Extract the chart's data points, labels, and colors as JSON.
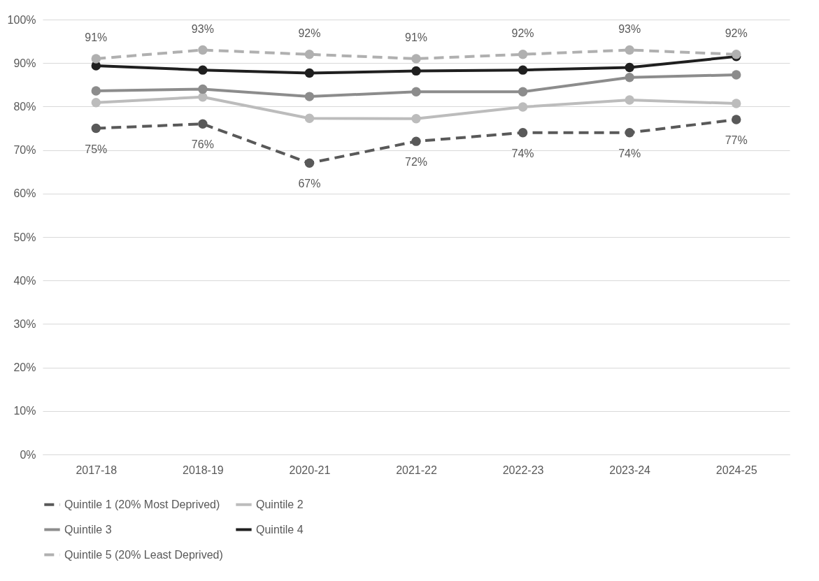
{
  "chart_data": {
    "type": "line",
    "categories": [
      "2017-18",
      "2018-19",
      "2020-21",
      "2021-22",
      "2022-23",
      "2023-24",
      "2024-25"
    ],
    "ylim": [
      0,
      100
    ],
    "yticks": [
      {
        "value": 0,
        "label": "0%"
      },
      {
        "value": 10,
        "label": "10%"
      },
      {
        "value": 20,
        "label": "20%"
      },
      {
        "value": 30,
        "label": "30%"
      },
      {
        "value": 40,
        "label": "40%"
      },
      {
        "value": 50,
        "label": "50%"
      },
      {
        "value": 60,
        "label": "60%"
      },
      {
        "value": 70,
        "label": "70%"
      },
      {
        "value": 80,
        "label": "80%"
      },
      {
        "value": 90,
        "label": "90%"
      },
      {
        "value": 100,
        "label": "100%"
      }
    ],
    "grid": "y",
    "legend": "bottom",
    "marker": "circle",
    "series": [
      {
        "name": "Quintile 1 (20% Most Deprived)",
        "color": "#595959",
        "line_style": "dashed",
        "values": [
          75,
          76,
          67,
          72,
          74,
          74,
          77
        ],
        "value_labels": [
          "75%",
          "76%",
          "67%",
          "72%",
          "74%",
          "74%",
          "77%"
        ]
      },
      {
        "name": "Quintile 2",
        "color": "#bcbcbc",
        "line_style": "solid",
        "values": [
          80.9,
          82.2,
          77.3,
          77.2,
          79.9,
          81.5,
          80.7
        ]
      },
      {
        "name": "Quintile 3",
        "color": "#8c8c8c",
        "line_style": "solid",
        "values": [
          83.6,
          84.0,
          82.3,
          83.4,
          83.4,
          86.7,
          87.3
        ]
      },
      {
        "name": "Quintile 4",
        "color": "#1f1f1f",
        "line_style": "solid",
        "values": [
          89.4,
          88.4,
          87.7,
          88.2,
          88.4,
          89.0,
          91.5
        ]
      },
      {
        "name": "Quintile 5 (20% Least Deprived)",
        "color": "#b0b0b0",
        "line_style": "dashed",
        "values": [
          91,
          93,
          92,
          91,
          92,
          93,
          92
        ],
        "value_labels": [
          "91%",
          "93%",
          "92%",
          "91%",
          "92%",
          "93%",
          "92%"
        ]
      }
    ]
  }
}
